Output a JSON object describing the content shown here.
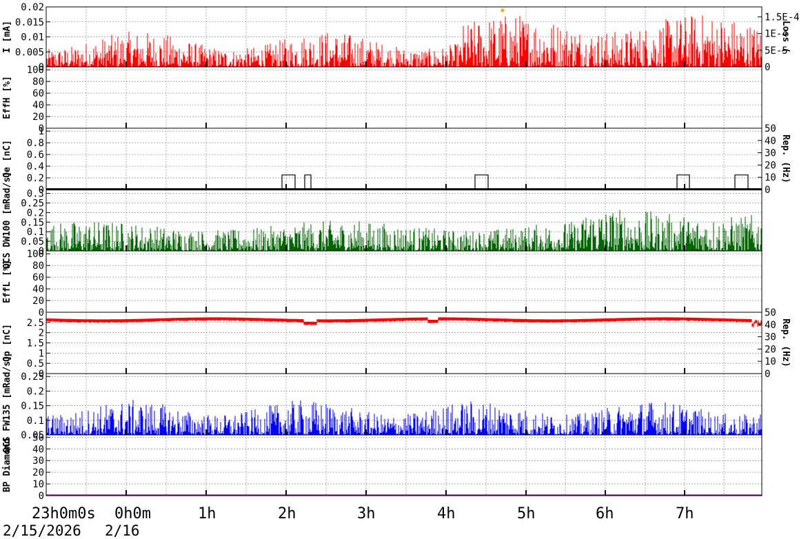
{
  "chart_data": [
    {
      "type": "line",
      "ylabel": "I [mA]",
      "y_ticks": [
        "0",
        "0.005",
        "0.01",
        "0.015",
        "0.02"
      ],
      "ylim": [
        0,
        0.02
      ],
      "right_ticks": [
        "0",
        "5E-5",
        "1E-4",
        "1.5E-4"
      ],
      "right_ylim": [
        0,
        0.00018
      ],
      "right_label": "Loss ("
    },
    {
      "type": "line",
      "ylabel": "EffH [%]",
      "y_ticks": [
        "0",
        "20",
        "40",
        "60",
        "80",
        "100"
      ],
      "ylim": [
        0,
        105
      ]
    },
    {
      "type": "line",
      "ylabel": "Qe [nC]",
      "y_ticks": [
        "0",
        "0.2",
        "0.4",
        "0.6",
        "0.8",
        "1"
      ],
      "ylim": [
        0,
        1.05
      ],
      "right_ticks": [
        "0",
        "10",
        "20",
        "30",
        "40",
        "50"
      ],
      "right_label": "Rep. (Hz)"
    },
    {
      "type": "line",
      "ylabel": "QCS DW100 [mRad/s]",
      "y_ticks": [
        "0",
        "0.05",
        "0.1",
        "0.15",
        "0.2",
        "0.25",
        "0.3"
      ],
      "ylim": [
        0,
        0.32
      ]
    },
    {
      "type": "line",
      "ylabel": "EffL [%]",
      "y_ticks": [
        "0",
        "20",
        "40",
        "60",
        "80",
        "100"
      ],
      "ylim": [
        0,
        105
      ]
    },
    {
      "type": "line",
      "ylabel": "Qp [nC]",
      "y_ticks": [
        "0",
        "0.5",
        "1",
        "1.5",
        "2",
        "2.5"
      ],
      "ylim": [
        0,
        3.0
      ],
      "right_ticks": [
        "0",
        "10",
        "20",
        "30",
        "40",
        "50"
      ],
      "right_label": "Rep. (Hz)"
    },
    {
      "type": "line",
      "ylabel": "QCS FW135 [mRad/s]",
      "y_ticks": [
        "0.05",
        "0.1",
        "0.15",
        "0.2",
        "0.25"
      ],
      "ylim": [
        0.05,
        0.26
      ]
    },
    {
      "type": "line",
      "ylabel": "BP Diamond",
      "y_ticks": [
        "0",
        "10",
        "20",
        "30",
        "40",
        "50"
      ],
      "ylim": [
        0,
        52
      ]
    }
  ],
  "time_axis": {
    "start_label": "23h0m0s",
    "labels": [
      "0h0m",
      "1h",
      "2h",
      "3h",
      "4h",
      "5h",
      "6h",
      "7h"
    ],
    "start_date": "2/15/2026",
    "next_date": "2/16"
  },
  "colors": {
    "current": "#ff0000",
    "qcs_dw": "#006400",
    "qp": "#ff0000",
    "qcs_fw": "#0000ff",
    "bp": "#ff00ff",
    "qe_rep": "#000000",
    "loss_marker": "#ffa500"
  }
}
